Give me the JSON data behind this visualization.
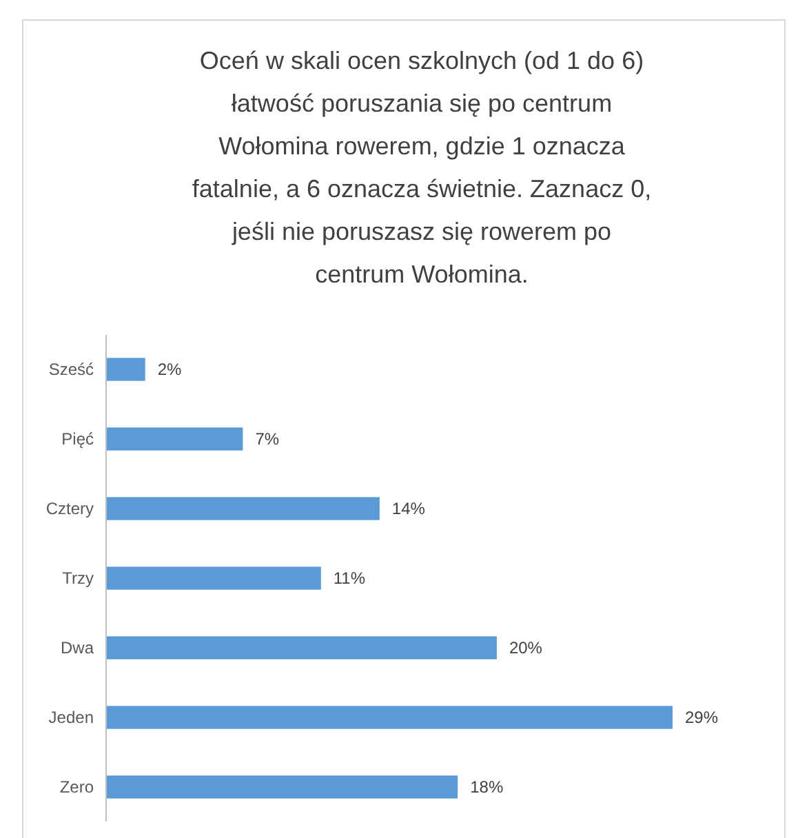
{
  "chart_data": {
    "type": "bar",
    "orientation": "horizontal",
    "title": "Oceń w skali ocen szkolnych (od 1 do 6) łatwość poruszania się po centrum Wołomina rowerem, gdzie 1 oznacza fatalnie, a 6 oznacza świetnie. Zaznacz 0, jeśli nie poruszasz się rowerem po centrum Wołomina.",
    "categories": [
      "Sześć",
      "Pięć",
      "Cztery",
      "Trzy",
      "Dwa",
      "Jeden",
      "Zero"
    ],
    "values": [
      2,
      7,
      14,
      11,
      20,
      29,
      18
    ],
    "value_labels": [
      "2%",
      "7%",
      "14%",
      "11%",
      "20%",
      "29%",
      "18%"
    ],
    "color": "#5b9bd5"
  }
}
